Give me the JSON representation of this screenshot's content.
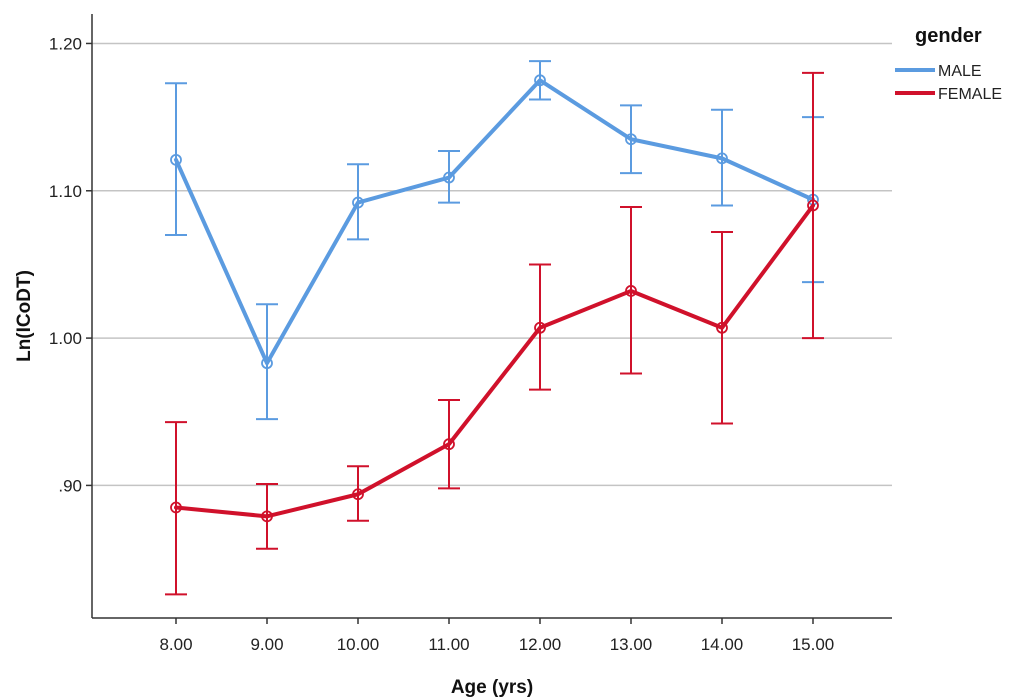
{
  "chart_data": {
    "type": "line",
    "title": "",
    "xlabel": "Age (yrs)",
    "ylabel": "Ln(ICoDT)",
    "categories": [
      "8.00",
      "9.00",
      "10.00",
      "11.00",
      "12.00",
      "13.00",
      "14.00",
      "15.00"
    ],
    "yticks": [
      0.9,
      1.0,
      1.1,
      1.2
    ],
    "ytick_labels": [
      ".90",
      "1.00",
      "1.10",
      "1.20"
    ],
    "ylim": [
      0.81,
      1.22
    ],
    "grid": "horizontal",
    "error_bars": true,
    "legend": {
      "title": "gender",
      "placement": "right-top"
    },
    "series": [
      {
        "name": "MALE",
        "color": "#5b9be0",
        "values": [
          1.121,
          0.983,
          1.092,
          1.109,
          1.175,
          1.135,
          1.122,
          1.094
        ],
        "lower": [
          1.07,
          0.945,
          1.067,
          1.092,
          1.162,
          1.112,
          1.09,
          1.038
        ],
        "upper": [
          1.173,
          1.023,
          1.118,
          1.127,
          1.188,
          1.158,
          1.155,
          1.15
        ]
      },
      {
        "name": "FEMALE",
        "color": "#d0112b",
        "values": [
          0.885,
          0.879,
          0.894,
          0.928,
          1.007,
          1.032,
          1.007,
          1.09
        ],
        "lower": [
          0.826,
          0.857,
          0.876,
          0.898,
          0.965,
          0.976,
          0.942,
          1.0
        ],
        "upper": [
          0.943,
          0.901,
          0.913,
          0.958,
          1.05,
          1.089,
          1.072,
          1.18
        ]
      }
    ]
  }
}
